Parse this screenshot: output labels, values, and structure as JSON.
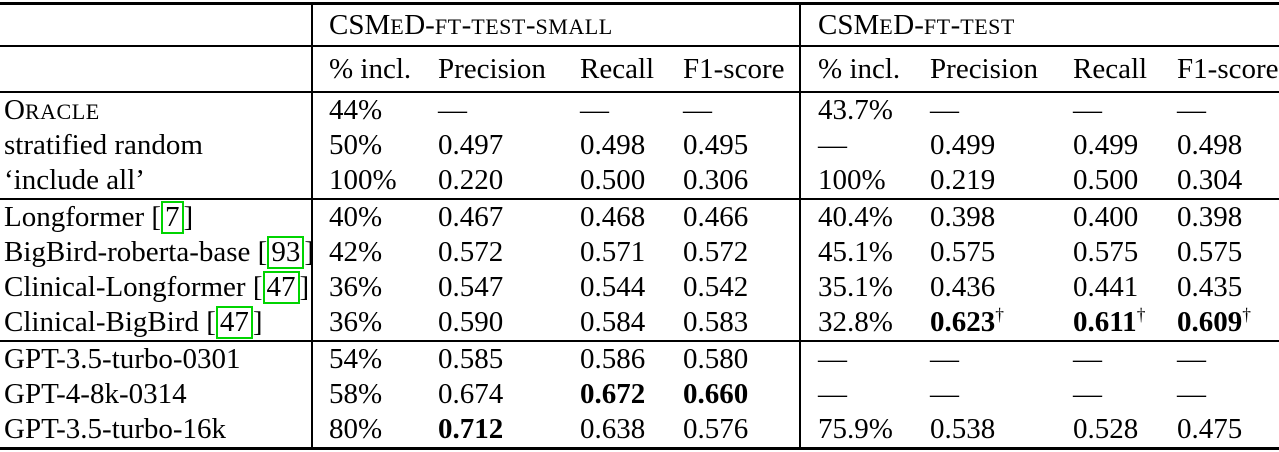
{
  "table": {
    "header_groups": [
      {
        "label": "CSMeD-ft-test-small"
      },
      {
        "label": "CSMeD-ft-test"
      }
    ],
    "sub_headers": [
      "% incl.",
      "Precision",
      "Recall",
      "F1-score"
    ],
    "footnote_symbol": "†",
    "missing_value": "—",
    "colors": {
      "citation_box_green": "#00d400",
      "rule_black": "#000000",
      "background": "#ffffff"
    },
    "row_groups": [
      {
        "rows": [
          {
            "label": "Oracle",
            "smallcaps": true,
            "cells": [
              "44%",
              "—",
              "—",
              "—",
              "43.7%",
              "—",
              "—",
              "—"
            ]
          },
          {
            "label": "stratified random",
            "cells": [
              "50%",
              "0.497",
              "0.498",
              "0.495",
              "—",
              "0.499",
              "0.499",
              "0.498"
            ]
          },
          {
            "label": "‘include all’",
            "cells": [
              "100%",
              "0.220",
              "0.500",
              "0.306",
              "100%",
              "0.219",
              "0.500",
              "0.304"
            ]
          }
        ]
      },
      {
        "rows": [
          {
            "label": "Longformer",
            "cite": "7",
            "cells": [
              "40%",
              "0.467",
              "0.468",
              "0.466",
              "40.4%",
              "0.398",
              "0.400",
              "0.398"
            ]
          },
          {
            "label": "BigBird-roberta-base",
            "cite": "93",
            "cells": [
              "42%",
              "0.572",
              "0.571",
              "0.572",
              "45.1%",
              "0.575",
              "0.575",
              "0.575"
            ]
          },
          {
            "label": "Clinical-Longformer",
            "cite": "47",
            "cells": [
              "36%",
              "0.547",
              "0.544",
              "0.542",
              "35.1%",
              "0.436",
              "0.441",
              "0.435"
            ]
          },
          {
            "label": "Clinical-BigBird",
            "cite": "47",
            "cells": [
              "36%",
              "0.590",
              "0.584",
              "0.583",
              "32.8%",
              {
                "text": "0.623",
                "bold": true,
                "dagger": true
              },
              {
                "text": "0.611",
                "bold": true,
                "dagger": true
              },
              {
                "text": "0.609",
                "bold": true,
                "dagger": true
              }
            ]
          }
        ]
      },
      {
        "rows": [
          {
            "label": "GPT-3.5-turbo-0301",
            "cells": [
              "54%",
              "0.585",
              "0.586",
              "0.580",
              "—",
              "—",
              "—",
              "—"
            ]
          },
          {
            "label": "GPT-4-8k-0314",
            "cells": [
              "58%",
              "0.674",
              {
                "text": "0.672",
                "bold": true
              },
              {
                "text": "0.660",
                "bold": true
              },
              "—",
              "—",
              "—",
              "—"
            ]
          },
          {
            "label": "GPT-3.5-turbo-16k",
            "cells": [
              "80%",
              {
                "text": "0.712",
                "bold": true
              },
              "0.638",
              "0.576",
              "75.9%",
              "0.538",
              "0.528",
              "0.475"
            ]
          }
        ]
      }
    ]
  }
}
